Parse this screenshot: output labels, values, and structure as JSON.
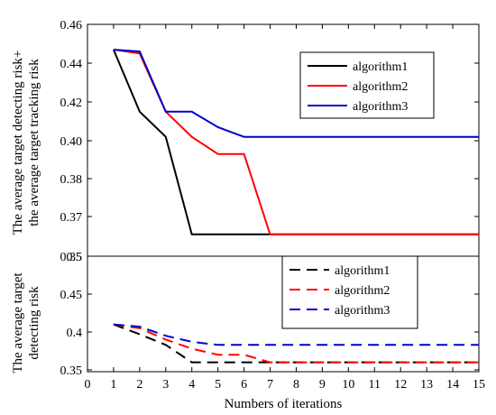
{
  "chart_data": [
    {
      "type": "line",
      "ylabel": [
        "The average target detecting risk+",
        "the average target tracking risk"
      ],
      "ylim": [
        0.35,
        0.46
      ],
      "yticks": [
        "0.46",
        "0.44",
        "0.42",
        "0.40",
        "0.38",
        "0.37",
        "0.35"
      ],
      "legend_position": "top-right",
      "grid": false,
      "series": [
        {
          "name": "algorithm1",
          "color": "#000000",
          "dash": "solid",
          "x": [
            1,
            2,
            3,
            4,
            5,
            6,
            7,
            15
          ],
          "y": [
            0.447,
            0.415,
            0.402,
            0.361,
            0.361,
            0.361,
            0.361,
            0.361
          ]
        },
        {
          "name": "algorithm2",
          "color": "#ff0000",
          "dash": "solid",
          "x": [
            1,
            2,
            3,
            4,
            5,
            6,
            7,
            15
          ],
          "y": [
            0.447,
            0.445,
            0.415,
            0.402,
            0.393,
            0.393,
            0.361,
            0.361
          ]
        },
        {
          "name": "algorithm3",
          "color": "#0000cc",
          "dash": "solid",
          "x": [
            1,
            2,
            3,
            4,
            5,
            6,
            7,
            15
          ],
          "y": [
            0.447,
            0.446,
            0.415,
            0.415,
            0.407,
            0.402,
            0.402,
            0.402
          ]
        }
      ]
    },
    {
      "type": "line",
      "ylabel": [
        "The average target",
        "detecting risk"
      ],
      "ylim": [
        0.35,
        0.5
      ],
      "yticks": [
        "0.5",
        "0.45",
        "0.4",
        "0.35"
      ],
      "xlabel": "Numbers of iterations",
      "xlim": [
        0,
        15
      ],
      "xticks": [
        "0",
        "1",
        "2",
        "3",
        "4",
        "5",
        "6",
        "7",
        "8",
        "9",
        "10",
        "11",
        "12",
        "13",
        "14",
        "15"
      ],
      "legend_position": "top-right",
      "grid": false,
      "series": [
        {
          "name": "algorithm1",
          "color": "#000000",
          "dash": "dashed",
          "x": [
            1,
            2,
            3,
            4,
            5,
            6,
            7,
            15
          ],
          "y": [
            0.41,
            0.397,
            0.383,
            0.36,
            0.36,
            0.36,
            0.36,
            0.36
          ]
        },
        {
          "name": "algorithm2",
          "color": "#ff0000",
          "dash": "dashed",
          "x": [
            1,
            2,
            3,
            4,
            5,
            6,
            7,
            15
          ],
          "y": [
            0.41,
            0.405,
            0.39,
            0.378,
            0.37,
            0.37,
            0.36,
            0.36
          ]
        },
        {
          "name": "algorithm3",
          "color": "#0000cc",
          "dash": "dashed",
          "x": [
            1,
            2,
            3,
            4,
            5,
            6,
            7,
            15
          ],
          "y": [
            0.41,
            0.407,
            0.395,
            0.387,
            0.383,
            0.383,
            0.383,
            0.383
          ]
        }
      ]
    }
  ]
}
